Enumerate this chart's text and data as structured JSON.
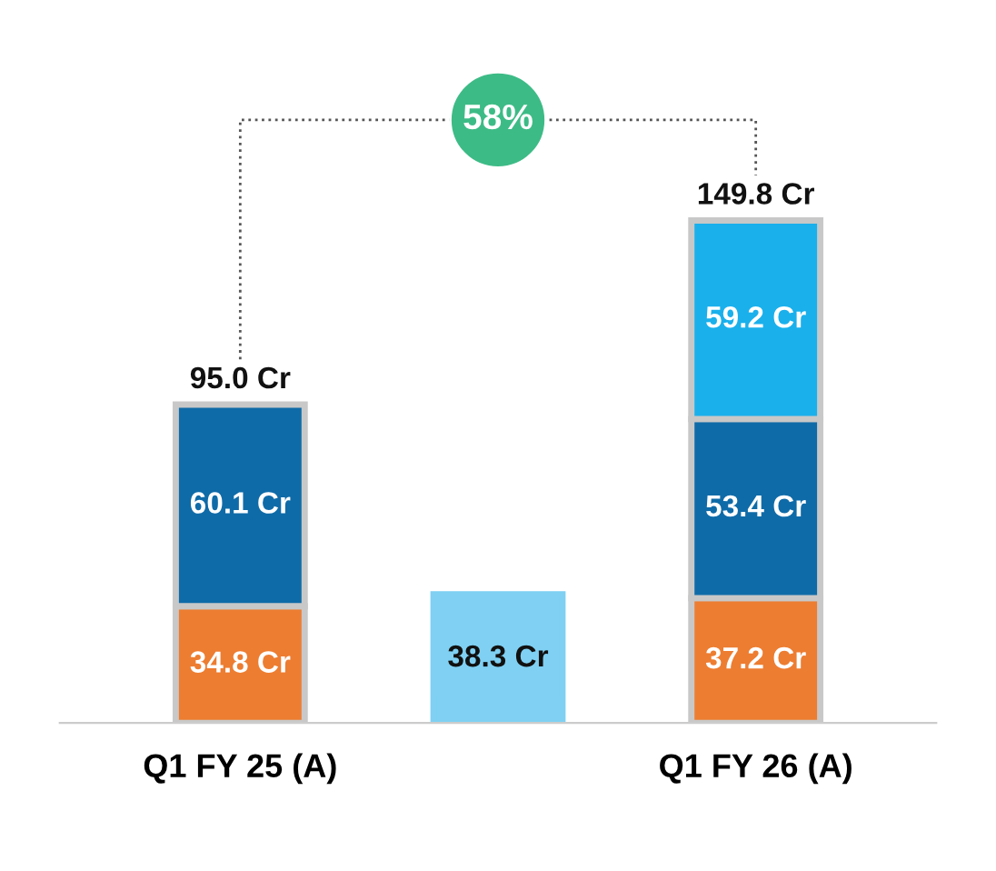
{
  "chart_data": {
    "type": "bar",
    "stacked": true,
    "categories": [
      "Q1 FY 25 (A)",
      null,
      "Q1 FY 26 (A)"
    ],
    "series": [
      {
        "color": "#ed7d31",
        "values": [
          34.8,
          null,
          37.2
        ],
        "value_labels": [
          "34.8 Cr",
          null,
          "37.2 Cr"
        ]
      },
      {
        "color": "#0f6ba8",
        "values": [
          60.1,
          null,
          53.4
        ],
        "value_labels": [
          "60.1 Cr",
          null,
          "53.4 Cr"
        ]
      },
      {
        "color": "#1ab0ec",
        "values": [
          null,
          null,
          59.2
        ],
        "value_labels": [
          null,
          null,
          "59.2 Cr"
        ]
      },
      {
        "color": "#7fd0f3",
        "values": [
          null,
          38.3,
          null
        ],
        "value_labels": [
          null,
          "38.3 Cr",
          null
        ]
      }
    ],
    "totals": [
      "95.0 Cr",
      null,
      "149.8 Cr"
    ],
    "annotations": [
      "58%"
    ],
    "grid": false,
    "legend": false
  }
}
